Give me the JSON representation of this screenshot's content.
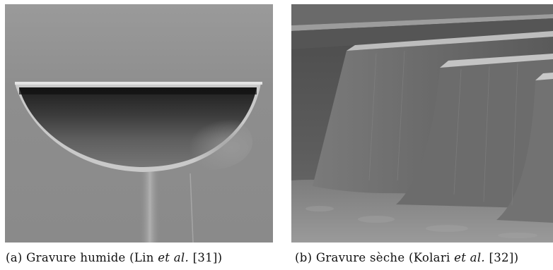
{
  "figure": {
    "panel_a": {
      "caption": {
        "label": "(a)",
        "title": "Gravure humide (Lin",
        "et_al": "et al.",
        "ref": "[31])"
      }
    },
    "panel_b": {
      "caption": {
        "label": "(b)",
        "title": "Gravure sèche (Kolari",
        "et_al": "et al.",
        "ref": "[32])"
      }
    }
  }
}
